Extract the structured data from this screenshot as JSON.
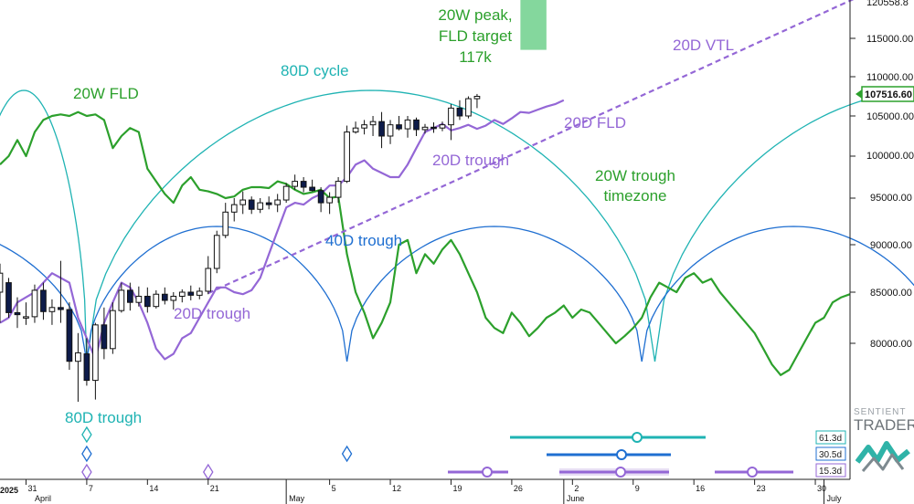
{
  "chart_data": {
    "type": "candlestick",
    "xlabel": "",
    "ylabel": "",
    "price_axis": {
      "ticks": [
        "115000.00",
        "110000.00",
        "105000.00",
        "100000.00",
        "95000.00",
        "90000.00",
        "85000.00",
        "80000.00"
      ],
      "top_partial_label": "120558.8",
      "current_price_label": "107516.60",
      "current_price": 107516.6,
      "range": [
        72000,
        122000
      ]
    },
    "time_axis": {
      "year_label": "2025",
      "ticks": [
        {
          "text": "31",
          "day": 0
        },
        {
          "text": "7",
          "day": 7
        },
        {
          "text": "14",
          "day": 14
        },
        {
          "text": "21",
          "day": 21
        },
        {
          "text": "May",
          "day": 30,
          "month": true
        },
        {
          "text": "5",
          "day": 35
        },
        {
          "text": "12",
          "day": 42
        },
        {
          "text": "19",
          "day": 49
        },
        {
          "text": "26",
          "day": 56
        },
        {
          "text": "2",
          "day": 63
        },
        {
          "text": "June",
          "day": 62,
          "month": true
        },
        {
          "text": "9",
          "day": 70
        },
        {
          "text": "16",
          "day": 77
        },
        {
          "text": "23",
          "day": 84
        },
        {
          "text": "30",
          "day": 91
        },
        {
          "text": "July",
          "day": 92,
          "month": true
        }
      ],
      "april_label": "April",
      "day_range": [
        -3,
        95
      ]
    },
    "annotations": {
      "fld_20w": "20W FLD",
      "cycle_80d": "80D cycle",
      "peak_20w": [
        "20W peak,",
        "FLD target",
        "117k"
      ],
      "vtl_20d": "20D VTL",
      "fld_20d": "20D FLD",
      "trough_20d_a": "20D trough",
      "trough_20d_b": "20D trough",
      "trough_40d": "40D trough",
      "timezone_20w": [
        "20W trough",
        "timezone"
      ],
      "trough_80d": "80D trough"
    },
    "cycle_labels": [
      "61.3d",
      "30.5d",
      "15.3d"
    ],
    "colors": {
      "candle": "#111111",
      "fld_20w": "#2ca02c",
      "fld_20d": "#9467d6",
      "cycle_80d": "#1fb3b3",
      "cycle_40d": "#1f6fd1",
      "vtl": "#9467d6",
      "target_box": "#6fd08c"
    },
    "candles": [
      {
        "d": -3,
        "o": 85000,
        "h": 88000,
        "l": 82000,
        "c": 87000
      },
      {
        "d": -2,
        "o": 86000,
        "h": 86500,
        "l": 82500,
        "c": 83000
      },
      {
        "d": -1,
        "o": 83000,
        "h": 84500,
        "l": 81500,
        "c": 82800
      },
      {
        "d": 0,
        "o": 82500,
        "h": 84000,
        "l": 81800,
        "c": 82600
      },
      {
        "d": 1,
        "o": 82600,
        "h": 85800,
        "l": 82000,
        "c": 85200
      },
      {
        "d": 2,
        "o": 85200,
        "h": 86000,
        "l": 82300,
        "c": 83100
      },
      {
        "d": 3,
        "o": 83100,
        "h": 84300,
        "l": 81800,
        "c": 83500
      },
      {
        "d": 4,
        "o": 83500,
        "h": 88300,
        "l": 82000,
        "c": 83300
      },
      {
        "d": 5,
        "o": 83300,
        "h": 84000,
        "l": 77500,
        "c": 78300
      },
      {
        "d": 6,
        "o": 78300,
        "h": 81000,
        "l": 74500,
        "c": 79100
      },
      {
        "d": 7,
        "o": 79000,
        "h": 80500,
        "l": 76000,
        "c": 76500
      },
      {
        "d": 8,
        "o": 76500,
        "h": 82000,
        "l": 74700,
        "c": 81800
      },
      {
        "d": 9,
        "o": 81800,
        "h": 83500,
        "l": 78500,
        "c": 79500
      },
      {
        "d": 10,
        "o": 79500,
        "h": 84000,
        "l": 79000,
        "c": 83200
      },
      {
        "d": 11,
        "o": 83200,
        "h": 86000,
        "l": 83000,
        "c": 85200
      },
      {
        "d": 12,
        "o": 85200,
        "h": 86000,
        "l": 83200,
        "c": 84000
      },
      {
        "d": 13,
        "o": 84000,
        "h": 85600,
        "l": 83600,
        "c": 84600
      },
      {
        "d": 14,
        "o": 84600,
        "h": 85500,
        "l": 83000,
        "c": 83600
      },
      {
        "d": 15,
        "o": 83600,
        "h": 85200,
        "l": 83400,
        "c": 84800
      },
      {
        "d": 16,
        "o": 84800,
        "h": 85500,
        "l": 83800,
        "c": 84200
      },
      {
        "d": 17,
        "o": 84200,
        "h": 85000,
        "l": 83300,
        "c": 84600
      },
      {
        "d": 18,
        "o": 84600,
        "h": 85300,
        "l": 84000,
        "c": 85000
      },
      {
        "d": 19,
        "o": 85000,
        "h": 85700,
        "l": 84200,
        "c": 84700
      },
      {
        "d": 20,
        "o": 84700,
        "h": 85500,
        "l": 84300,
        "c": 85100
      },
      {
        "d": 21,
        "o": 85100,
        "h": 88800,
        "l": 84800,
        "c": 87500
      },
      {
        "d": 22,
        "o": 87500,
        "h": 91500,
        "l": 87000,
        "c": 91000
      },
      {
        "d": 23,
        "o": 91000,
        "h": 94500,
        "l": 90700,
        "c": 93500
      },
      {
        "d": 24,
        "o": 93500,
        "h": 95000,
        "l": 92500,
        "c": 94300
      },
      {
        "d": 25,
        "o": 94300,
        "h": 95800,
        "l": 93300,
        "c": 94800
      },
      {
        "d": 26,
        "o": 94800,
        "h": 95200,
        "l": 93300,
        "c": 93800
      },
      {
        "d": 27,
        "o": 93800,
        "h": 95000,
        "l": 93400,
        "c": 94500
      },
      {
        "d": 28,
        "o": 94500,
        "h": 95200,
        "l": 93800,
        "c": 94300
      },
      {
        "d": 29,
        "o": 94300,
        "h": 95500,
        "l": 93500,
        "c": 94800
      },
      {
        "d": 30,
        "o": 94800,
        "h": 96800,
        "l": 94500,
        "c": 96400
      },
      {
        "d": 31,
        "o": 96400,
        "h": 97800,
        "l": 96000,
        "c": 97000
      },
      {
        "d": 32,
        "o": 97000,
        "h": 97500,
        "l": 95700,
        "c": 96300
      },
      {
        "d": 33,
        "o": 96300,
        "h": 97200,
        "l": 95800,
        "c": 95900
      },
      {
        "d": 34,
        "o": 95900,
        "h": 96300,
        "l": 93500,
        "c": 94500
      },
      {
        "d": 35,
        "o": 94500,
        "h": 95700,
        "l": 93300,
        "c": 95100
      },
      {
        "d": 36,
        "o": 95100,
        "h": 97500,
        "l": 94500,
        "c": 97000
      },
      {
        "d": 37,
        "o": 97000,
        "h": 103800,
        "l": 96800,
        "c": 103000
      },
      {
        "d": 38,
        "o": 103000,
        "h": 104300,
        "l": 102800,
        "c": 103500
      },
      {
        "d": 39,
        "o": 103500,
        "h": 104500,
        "l": 102700,
        "c": 103900
      },
      {
        "d": 40,
        "o": 103900,
        "h": 105000,
        "l": 102500,
        "c": 104300
      },
      {
        "d": 41,
        "o": 104300,
        "h": 105500,
        "l": 101000,
        "c": 102500
      },
      {
        "d": 42,
        "o": 102500,
        "h": 104500,
        "l": 101500,
        "c": 103900
      },
      {
        "d": 43,
        "o": 103900,
        "h": 105000,
        "l": 103200,
        "c": 103400
      },
      {
        "d": 44,
        "o": 103400,
        "h": 105000,
        "l": 102300,
        "c": 104500
      },
      {
        "d": 45,
        "o": 104500,
        "h": 104800,
        "l": 102500,
        "c": 103300
      },
      {
        "d": 46,
        "o": 103300,
        "h": 104000,
        "l": 102800,
        "c": 103600
      },
      {
        "d": 47,
        "o": 103600,
        "h": 104200,
        "l": 102900,
        "c": 103500
      },
      {
        "d": 48,
        "o": 103500,
        "h": 104300,
        "l": 103100,
        "c": 103900
      },
      {
        "d": 49,
        "o": 103900,
        "h": 106500,
        "l": 102000,
        "c": 106000
      },
      {
        "d": 50,
        "o": 106000,
        "h": 107000,
        "l": 104500,
        "c": 105000
      },
      {
        "d": 51,
        "o": 105000,
        "h": 107500,
        "l": 104700,
        "c": 107200
      },
      {
        "d": 52,
        "o": 107200,
        "h": 107800,
        "l": 106000,
        "c": 107500
      }
    ],
    "fld_20w_points": [
      [
        -3,
        99000
      ],
      [
        -2,
        100000
      ],
      [
        -1,
        102000
      ],
      [
        0,
        100000
      ],
      [
        1,
        103000
      ],
      [
        2,
        104500
      ],
      [
        3,
        105000
      ],
      [
        4,
        105200
      ],
      [
        5,
        105000
      ],
      [
        6,
        105500
      ],
      [
        7,
        105000
      ],
      [
        8,
        105200
      ],
      [
        9,
        104500
      ],
      [
        10,
        101000
      ],
      [
        11,
        102500
      ],
      [
        12,
        103500
      ],
      [
        13,
        103000
      ],
      [
        14,
        98500
      ],
      [
        15,
        97000
      ],
      [
        16,
        95500
      ],
      [
        17,
        94500
      ],
      [
        18,
        96500
      ],
      [
        19,
        97500
      ],
      [
        20,
        96000
      ],
      [
        21,
        95800
      ],
      [
        22,
        95500
      ],
      [
        23,
        95000
      ],
      [
        24,
        95200
      ],
      [
        25,
        96000
      ],
      [
        26,
        96300
      ],
      [
        27,
        96300
      ],
      [
        28,
        96200
      ],
      [
        29,
        97000
      ],
      [
        30,
        96700
      ],
      [
        31,
        96000
      ],
      [
        32,
        95500
      ],
      [
        33,
        95700
      ],
      [
        34,
        96000
      ],
      [
        35,
        95000
      ],
      [
        36,
        95200
      ],
      [
        37,
        89000
      ],
      [
        38,
        85000
      ],
      [
        39,
        83000
      ],
      [
        40,
        80500
      ],
      [
        41,
        82000
      ],
      [
        42,
        84000
      ],
      [
        43,
        90000
      ],
      [
        44,
        90500
      ],
      [
        45,
        87000
      ],
      [
        46,
        89000
      ],
      [
        47,
        88000
      ],
      [
        48,
        89500
      ],
      [
        49,
        90500
      ],
      [
        50,
        89000
      ],
      [
        51,
        87000
      ],
      [
        52,
        85000
      ],
      [
        53,
        82500
      ],
      [
        54,
        81500
      ],
      [
        55,
        81000
      ],
      [
        56,
        83000
      ],
      [
        57,
        82000
      ],
      [
        58,
        80700
      ],
      [
        59,
        81500
      ],
      [
        60,
        82500
      ],
      [
        61,
        83000
      ],
      [
        62,
        83700
      ],
      [
        63,
        82500
      ],
      [
        64,
        83300
      ],
      [
        65,
        83000
      ],
      [
        66,
        82000
      ],
      [
        67,
        81000
      ],
      [
        68,
        80000
      ],
      [
        69,
        80700
      ],
      [
        70,
        81500
      ],
      [
        71,
        82500
      ],
      [
        72,
        84500
      ],
      [
        73,
        86000
      ],
      [
        74,
        85500
      ],
      [
        75,
        85000
      ],
      [
        76,
        86500
      ],
      [
        77,
        87000
      ],
      [
        78,
        86000
      ],
      [
        79,
        86400
      ],
      [
        80,
        85000
      ],
      [
        81,
        84000
      ],
      [
        82,
        83000
      ],
      [
        83,
        82000
      ],
      [
        84,
        81000
      ],
      [
        85,
        79500
      ],
      [
        86,
        78000
      ],
      [
        87,
        77000
      ],
      [
        88,
        77500
      ],
      [
        89,
        79000
      ],
      [
        90,
        80500
      ],
      [
        91,
        82000
      ],
      [
        92,
        82500
      ],
      [
        93,
        84000
      ],
      [
        94,
        84500
      ],
      [
        95,
        84800
      ]
    ],
    "fld_20d_points": [
      [
        -3,
        82000
      ],
      [
        -2,
        82500
      ],
      [
        -1,
        84000
      ],
      [
        0,
        84500
      ],
      [
        1,
        85000
      ],
      [
        2,
        86000
      ],
      [
        3,
        87000
      ],
      [
        4,
        86500
      ],
      [
        5,
        86000
      ],
      [
        6,
        82500
      ],
      [
        7,
        80500
      ],
      [
        8,
        78500
      ],
      [
        9,
        82000
      ],
      [
        10,
        84000
      ],
      [
        11,
        86000
      ],
      [
        12,
        85500
      ],
      [
        13,
        84000
      ],
      [
        14,
        82000
      ],
      [
        15,
        79500
      ],
      [
        16,
        78500
      ],
      [
        17,
        79000
      ],
      [
        18,
        80500
      ],
      [
        19,
        81000
      ],
      [
        20,
        82500
      ],
      [
        21,
        84000
      ],
      [
        22,
        85500
      ],
      [
        23,
        85500
      ],
      [
        24,
        85000
      ],
      [
        25,
        84800
      ],
      [
        26,
        85200
      ],
      [
        27,
        86500
      ],
      [
        28,
        89000
      ],
      [
        29,
        91500
      ],
      [
        30,
        94000
      ],
      [
        31,
        94500
      ],
      [
        32,
        94300
      ],
      [
        33,
        95000
      ],
      [
        34,
        95500
      ],
      [
        35,
        96500
      ],
      [
        36,
        96500
      ],
      [
        37,
        97500
      ],
      [
        38,
        99000
      ],
      [
        39,
        99500
      ],
      [
        40,
        98500
      ],
      [
        41,
        98000
      ],
      [
        42,
        97500
      ],
      [
        43,
        97500
      ],
      [
        44,
        99000
      ],
      [
        45,
        101000
      ],
      [
        46,
        103000
      ],
      [
        47,
        103500
      ],
      [
        48,
        104000
      ],
      [
        49,
        103200
      ],
      [
        50,
        103500
      ],
      [
        51,
        103900
      ],
      [
        52,
        103400
      ],
      [
        53,
        103800
      ],
      [
        54,
        104500
      ],
      [
        55,
        104000
      ],
      [
        56,
        104700
      ],
      [
        57,
        105500
      ],
      [
        58,
        105400
      ],
      [
        59,
        105800
      ],
      [
        60,
        106200
      ],
      [
        61,
        106500
      ],
      [
        62,
        107000
      ]
    ],
    "vtl_20d": [
      [
        21,
        84900
      ],
      [
        96,
        121000
      ]
    ],
    "target_box": {
      "d0": 57,
      "d1": 60,
      "top": 122000,
      "bottom": 113500
    },
    "cycle_80d_arcs": [
      [
        -7.5,
        7
      ],
      [
        7,
        72.5
      ],
      [
        72.5,
        136
      ]
    ],
    "cycle_40d_arcs": [
      [
        -30,
        7
      ],
      [
        7,
        37
      ],
      [
        37,
        71
      ],
      [
        71,
        106
      ]
    ],
    "trough_markers": {
      "teal": [
        7
      ],
      "blue": [
        7,
        37
      ],
      "purple": [
        7,
        21
      ]
    },
    "projection_bars": [
      {
        "color": "teal",
        "d0": 58,
        "d1": 78,
        "mid": 69,
        "label_idx": 0
      },
      {
        "color": "blue",
        "d0": 60,
        "d1": 73,
        "mid": 67.5,
        "label_idx": 1
      },
      {
        "color": "purple",
        "d0": 47,
        "d1": 77,
        "mid": 50,
        "mid2": 66.5,
        "mid3": 84,
        "label_idx": 2
      }
    ]
  }
}
